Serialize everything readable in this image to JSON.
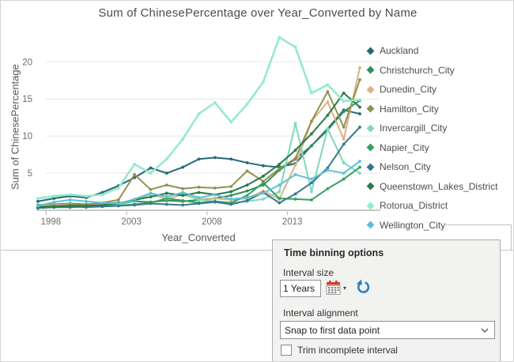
{
  "title": "Sum of ChinesePercentage over Year_Converted by Name",
  "chart_data": {
    "type": "line",
    "xlabel": "Year_Converted",
    "ylabel": "Sum of ChinesePercentage",
    "x": [
      1997,
      1998,
      1999,
      2000,
      2001,
      2002,
      2003,
      2004,
      2005,
      2006,
      2007,
      2008,
      2009,
      2010,
      2011,
      2012,
      2013,
      2014,
      2015,
      2016,
      2017
    ],
    "x_ticks": [
      1998,
      2003,
      2008,
      2013
    ],
    "y_ticks": [
      5,
      10,
      15,
      20
    ],
    "ylim": [
      0,
      24
    ],
    "grid": "horizontal",
    "legend_position": "right",
    "series": [
      {
        "name": "Auckland",
        "color": "#256878",
        "values": [
          1.2,
          1.6,
          1.9,
          1.7,
          2.4,
          3.3,
          4.4,
          5.7,
          5.0,
          5.8,
          6.9,
          7.1,
          6.9,
          6.4,
          6.0,
          5.8,
          6.3,
          8.7,
          11.0,
          13.5,
          13.0
        ]
      },
      {
        "name": "Christchurch_City",
        "color": "#2f8f5b",
        "values": [
          0.7,
          0.8,
          0.9,
          0.8,
          0.9,
          1.0,
          1.2,
          1.1,
          1.3,
          1.2,
          1.4,
          1.6,
          2.0,
          2.6,
          3.4,
          5.4,
          6.9,
          8.7,
          10.8,
          13.3,
          14.8
        ]
      },
      {
        "name": "Dunedin_City",
        "color": "#d8b287",
        "values": [
          0.6,
          0.7,
          0.8,
          0.7,
          0.8,
          0.9,
          1.3,
          2.2,
          1.5,
          2.1,
          1.5,
          1.6,
          1.4,
          1.6,
          2.6,
          1.5,
          6.1,
          12.0,
          14.6,
          9.6,
          19.2
        ]
      },
      {
        "name": "Hamilton_City",
        "color": "#93914f",
        "values": [
          0.5,
          0.6,
          0.7,
          0.8,
          1.0,
          1.4,
          4.8,
          2.8,
          3.4,
          2.9,
          3.1,
          3.0,
          3.2,
          5.3,
          3.9,
          5.6,
          7.0,
          12.0,
          16.0,
          11.2,
          17.6
        ]
      },
      {
        "name": "Invercargill_City",
        "color": "#7fd8c0",
        "values": [
          0.4,
          0.5,
          0.6,
          0.5,
          0.6,
          0.7,
          1.2,
          2.2,
          1.9,
          2.2,
          1.4,
          1.2,
          1.0,
          1.2,
          1.5,
          2.5,
          11.7,
          2.5,
          11.0,
          6.4,
          5.0
        ]
      },
      {
        "name": "Napier_City",
        "color": "#36a15e",
        "values": [
          0.3,
          0.4,
          0.5,
          0.4,
          0.5,
          0.6,
          0.8,
          1.0,
          1.6,
          1.3,
          1.0,
          1.2,
          1.0,
          2.0,
          3.7,
          1.6,
          1.5,
          1.4,
          2.9,
          4.2,
          5.8
        ]
      },
      {
        "name": "Nelson_City",
        "color": "#37788e",
        "values": [
          0.3,
          0.4,
          0.4,
          0.5,
          0.5,
          0.6,
          0.7,
          0.9,
          0.8,
          0.7,
          0.9,
          1.1,
          0.8,
          1.3,
          2.4,
          1.0,
          2.2,
          3.7,
          5.7,
          8.9,
          11.2
        ]
      },
      {
        "name": "Queenstown_Lakes_District",
        "color": "#2a7a47",
        "values": [
          0.4,
          0.5,
          0.6,
          0.6,
          0.7,
          0.9,
          1.4,
          1.8,
          2.3,
          2.0,
          2.4,
          2.1,
          2.5,
          3.4,
          4.6,
          6.2,
          8.1,
          10.3,
          12.8,
          15.8,
          13.9
        ]
      },
      {
        "name": "Rotorua_District",
        "color": "#8feccb",
        "values": [
          1.6,
          1.9,
          2.1,
          1.9,
          2.1,
          3.0,
          6.2,
          5.0,
          6.9,
          9.6,
          13.0,
          14.5,
          11.9,
          14.3,
          17.3,
          23.3,
          22.0,
          15.8,
          16.9,
          14.7,
          14.9
        ]
      },
      {
        "name": "Wellington_City",
        "color": "#5ec1d7",
        "values": [
          0.6,
          1.1,
          1.4,
          1.2,
          1.0,
          0.9,
          1.5,
          2.3,
          1.8,
          2.4,
          1.7,
          2.1,
          1.5,
          1.7,
          2.3,
          3.4,
          4.8,
          4.2,
          5.4,
          5.0,
          6.6
        ]
      }
    ]
  },
  "binning_panel": {
    "title": "Time binning options",
    "interval_size_label": "Interval size",
    "interval_size_value": "1 Years",
    "interval_alignment_label": "Interval alignment",
    "interval_alignment_value": "Snap to first data point",
    "trim_checkbox_label": "Trim incomplete interval",
    "trim_checked": false
  },
  "colors": {
    "grid": "#e6e6e6",
    "axis_line": "#b5b5b5",
    "tick_text": "#6e6e6e",
    "panel_bg": "#f2f2f1",
    "reset_icon_blue": "#2e7ec1",
    "calendar_red": "#cf4029"
  }
}
